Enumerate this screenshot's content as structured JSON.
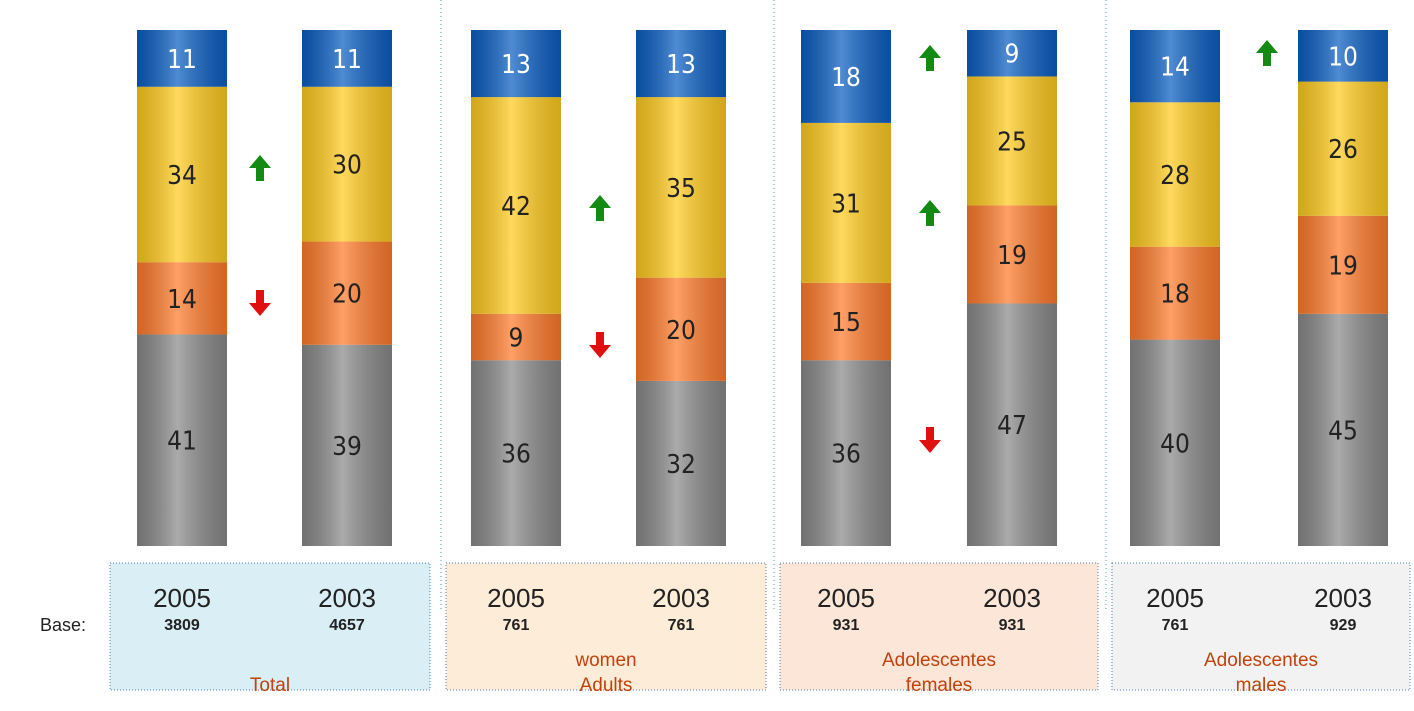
{
  "chart_data": {
    "type": "bar",
    "stacked": true,
    "ylim": [
      0,
      100
    ],
    "base_label": "Base:",
    "colors": [
      "#8a8a8a",
      "#ff7b2c",
      "#ffcb1f",
      "#0b5ec2"
    ],
    "label_colors": [
      "#222222",
      "#222222",
      "#222222",
      "#ffffff"
    ],
    "groups": [
      {
        "name": [
          "Total"
        ],
        "box_color": "#daeef5",
        "categories": [
          "2005",
          "2003"
        ],
        "bases": [
          3809,
          4657
        ],
        "values": [
          [
            41,
            14,
            34,
            11
          ],
          [
            39,
            20,
            30,
            11
          ]
        ]
      },
      {
        "name": [
          "women",
          "Adults"
        ],
        "box_color": "#fdecd8",
        "categories": [
          "2005",
          "2003"
        ],
        "bases": [
          761,
          761
        ],
        "values": [
          [
            36,
            9,
            42,
            13
          ],
          [
            32,
            20,
            35,
            13
          ]
        ]
      },
      {
        "name": [
          "Adolescentes",
          "females"
        ],
        "box_color": "#fce6d8",
        "categories": [
          "2005",
          "2003"
        ],
        "bases": [
          931,
          931
        ],
        "values": [
          [
            36,
            15,
            31,
            18
          ],
          [
            47,
            19,
            25,
            9
          ]
        ]
      },
      {
        "name": [
          "Adolescentes",
          "males"
        ],
        "box_color": "#f2f2f2",
        "categories": [
          "2005",
          "2003"
        ],
        "bases": [
          761,
          929
        ],
        "values": [
          [
            40,
            18,
            28,
            14
          ],
          [
            45,
            19,
            26,
            10
          ]
        ]
      }
    ]
  }
}
